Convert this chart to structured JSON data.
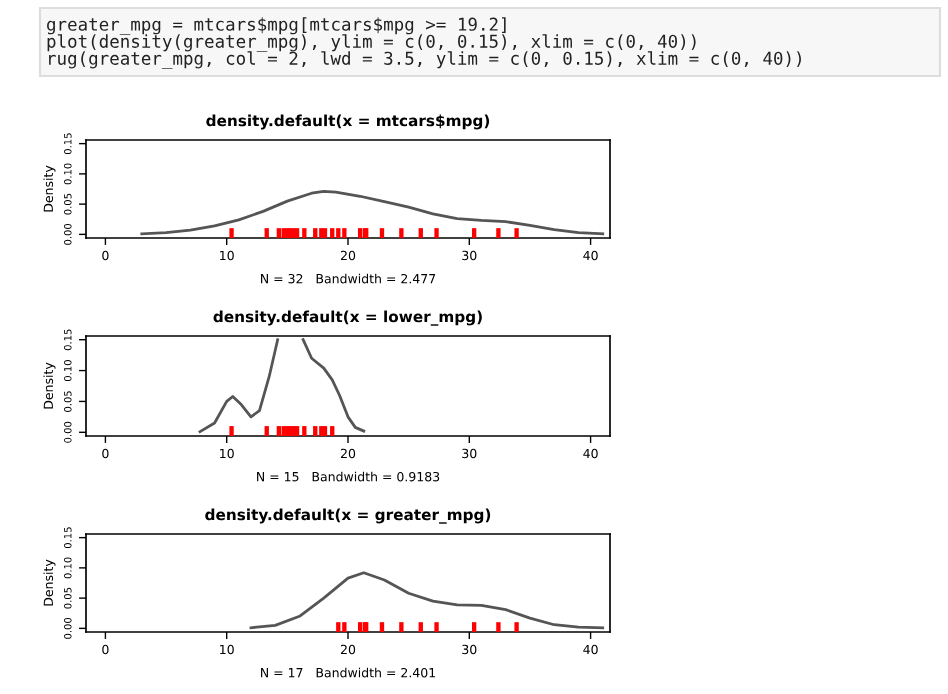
{
  "chart_data": [
    {
      "type": "other",
      "annotations": [
        "greater_mpg = mtcars$mpg[mtcars$mpg >= 19.2]",
        "plot(density(greater_mpg), ylim = c(0, 0.15), xlim = c(0, 40))",
        "rug(greater_mpg, col = 2, lwd = 3.5, ylim = c(0, 0.15), xlim = c(0, 40))"
      ]
    },
    {
      "type": "line",
      "title": "density.default(x = mtcars$mpg)",
      "xlabel": "N = 32   Bandwidth = 2.477",
      "ylabel": "Density",
      "xlim": [
        -1.6,
        41.6
      ],
      "ylim": [
        -0.006,
        0.156
      ],
      "xticks": [
        0,
        10,
        20,
        30,
        40
      ],
      "yticks": [
        {
          "value": 0,
          "label": "0.00"
        },
        {
          "value": 0.05,
          "label": "0.05"
        },
        {
          "value": 0.1,
          "label": "0.10"
        },
        {
          "value": 0.15,
          "label": "0.15"
        }
      ],
      "series": [
        {
          "type": "line",
          "color": "#555555",
          "x": [
            3,
            5,
            7,
            9,
            11,
            13,
            15,
            17,
            18,
            19,
            21,
            23,
            25,
            27,
            29,
            31,
            33,
            35,
            37,
            39,
            41
          ],
          "values": [
            0.001,
            0.003,
            0.007,
            0.014,
            0.024,
            0.038,
            0.055,
            0.068,
            0.071,
            0.07,
            0.063,
            0.054,
            0.045,
            0.034,
            0.026,
            0.023,
            0.021,
            0.015,
            0.008,
            0.003,
            0.001
          ]
        },
        {
          "type": "scatter",
          "color": "#ff0000",
          "x": [
            10.4,
            13.3,
            14.3,
            14.7,
            15.0,
            15.2,
            15.5,
            15.8,
            16.4,
            17.3,
            17.8,
            18.1,
            18.7,
            19.2,
            19.7,
            21.0,
            21.4,
            21.5,
            22.8,
            24.4,
            26.0,
            27.3,
            30.4,
            32.4,
            33.9
          ],
          "values": [
            0,
            0,
            0,
            0,
            0,
            0,
            0,
            0,
            0,
            0,
            0,
            0,
            0,
            0,
            0,
            0,
            0,
            0,
            0,
            0,
            0,
            0,
            0,
            0,
            0
          ]
        }
      ]
    },
    {
      "type": "line",
      "title": "density.default(x = lower_mpg)",
      "xlabel": "N = 15   Bandwidth = 0.9183",
      "ylabel": "Density",
      "xlim": [
        -1.6,
        41.6
      ],
      "ylim": [
        -0.006,
        0.156
      ],
      "xticks": [
        0,
        10,
        20,
        30,
        40
      ],
      "yticks": [
        {
          "value": 0,
          "label": "0.00"
        },
        {
          "value": 0.05,
          "label": "0.05"
        },
        {
          "value": 0.1,
          "label": "0.10"
        },
        {
          "value": 0.15,
          "label": "0.15"
        }
      ],
      "series": [
        {
          "type": "line",
          "color": "#555555",
          "x": [
            7.8,
            9,
            10,
            10.5,
            11.2,
            12,
            12.7,
            13.5,
            14.2,
            15,
            16.3,
            17,
            18,
            18.7,
            19.3,
            20,
            20.6,
            21.3
          ],
          "values": [
            0.001,
            0.015,
            0.05,
            0.058,
            0.045,
            0.025,
            0.035,
            0.09,
            0.15,
            null,
            0.15,
            0.12,
            0.104,
            0.085,
            0.06,
            0.025,
            0.008,
            0.002
          ]
        },
        {
          "type": "scatter",
          "color": "#ff0000",
          "x": [
            10.4,
            13.3,
            14.3,
            14.7,
            15.0,
            15.2,
            15.5,
            15.8,
            16.4,
            17.3,
            17.8,
            18.1,
            18.7
          ],
          "values": [
            0,
            0,
            0,
            0,
            0,
            0,
            0,
            0,
            0,
            0,
            0,
            0,
            0
          ]
        }
      ]
    },
    {
      "type": "line",
      "title": "density.default(x = greater_mpg)",
      "xlabel": "N = 17   Bandwidth = 2.401",
      "ylabel": "Density",
      "xlim": [
        -1.6,
        41.6
      ],
      "ylim": [
        -0.006,
        0.156
      ],
      "xticks": [
        0,
        10,
        20,
        30,
        40
      ],
      "yticks": [
        {
          "value": 0,
          "label": "0.00"
        },
        {
          "value": 0.05,
          "label": "0.05"
        },
        {
          "value": 0.1,
          "label": "0.10"
        },
        {
          "value": 0.15,
          "label": "0.15"
        }
      ],
      "series": [
        {
          "type": "line",
          "color": "#555555",
          "x": [
            12,
            14,
            16,
            18,
            20,
            21.3,
            23,
            25,
            27,
            29,
            31,
            33,
            35,
            37,
            39,
            41
          ],
          "values": [
            0.001,
            0.005,
            0.02,
            0.05,
            0.083,
            0.092,
            0.08,
            0.058,
            0.045,
            0.039,
            0.038,
            0.031,
            0.017,
            0.006,
            0.002,
            0.001
          ]
        },
        {
          "type": "scatter",
          "color": "#ff0000",
          "x": [
            19.2,
            19.7,
            21.0,
            21.4,
            21.5,
            22.8,
            24.4,
            26.0,
            27.3,
            30.4,
            32.4,
            33.9
          ],
          "values": [
            0,
            0,
            0,
            0,
            0,
            0,
            0,
            0,
            0,
            0,
            0,
            0
          ]
        }
      ]
    }
  ]
}
